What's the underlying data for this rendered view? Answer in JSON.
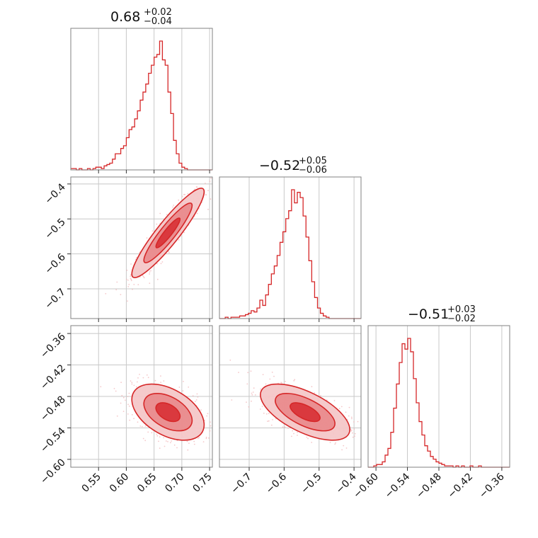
{
  "colors": {
    "accent": "#d62728",
    "point": "#f2b6b8",
    "fill_outer": "#f4c7c8",
    "fill_mid": "#e98b8d",
    "fill_inner": "#d9353a"
  },
  "chart_data": {
    "type": "corner",
    "grid": true,
    "parameters": [
      {
        "title": {
          "value": "0.68",
          "plus": "+0.02",
          "minus": "−0.04"
        },
        "range": [
          0.5,
          0.755
        ],
        "ticks": [
          0.55,
          0.6,
          0.65,
          0.7,
          0.75
        ],
        "tick_labels": [
          "0.55",
          "0.60",
          "0.65",
          "0.70",
          "0.75"
        ]
      },
      {
        "title": {
          "value": "−0.52",
          "plus": "+0.05",
          "minus": "−0.06"
        },
        "range": [
          -0.785,
          -0.38
        ],
        "ticks": [
          -0.7,
          -0.6,
          -0.5,
          -0.4
        ],
        "tick_labels": [
          "−0.7",
          "−0.6",
          "−0.5",
          "−0.4"
        ]
      },
      {
        "title": {
          "value": "−0.51",
          "plus": "+0.03",
          "minus": "−0.02"
        },
        "range": [
          -0.615,
          -0.345
        ],
        "ticks": [
          -0.6,
          -0.54,
          -0.48,
          -0.42,
          -0.36
        ],
        "tick_labels": [
          "−0.60",
          "−0.54",
          "−0.48",
          "−0.42",
          "−0.36"
        ]
      }
    ],
    "histograms": [
      {
        "param": 0,
        "bin_start": 0.5,
        "bin_width": 0.005,
        "counts": [
          1,
          1,
          0,
          1,
          0,
          0,
          1,
          0,
          1,
          2,
          2,
          1,
          3,
          4,
          5,
          8,
          12,
          12,
          16,
          18,
          24,
          30,
          32,
          38,
          44,
          52,
          58,
          64,
          72,
          78,
          84,
          86,
          96,
          82,
          78,
          58,
          42,
          22,
          12,
          5,
          2,
          1,
          0,
          0,
          0,
          0,
          0,
          0,
          0,
          0,
          0
        ]
      },
      {
        "param": 1,
        "bin_start": -0.785,
        "bin_width": 0.00825,
        "counts": [
          0,
          0,
          1,
          0,
          1,
          1,
          1,
          2,
          2,
          3,
          4,
          6,
          5,
          8,
          14,
          10,
          18,
          26,
          34,
          40,
          48,
          58,
          66,
          76,
          82,
          98,
          88,
          96,
          92,
          78,
          62,
          44,
          28,
          16,
          8,
          4,
          2,
          1,
          0,
          0,
          0,
          0,
          0,
          0,
          0,
          0,
          0,
          0,
          0
        ]
      },
      {
        "param": 2,
        "bin_start": -0.615,
        "bin_width": 0.0054,
        "counts": [
          0,
          0,
          1,
          2,
          2,
          4,
          9,
          14,
          26,
          44,
          62,
          78,
          92,
          88,
          96,
          86,
          66,
          48,
          34,
          24,
          16,
          12,
          8,
          6,
          4,
          3,
          2,
          1,
          1,
          1,
          0,
          1,
          0,
          1,
          0,
          0,
          1,
          0,
          0,
          1,
          0,
          0,
          0,
          0,
          0,
          0,
          0,
          0,
          0,
          0
        ]
      }
    ],
    "joint": [
      {
        "x_param": 0,
        "y_param": 1,
        "mean": [
          0.675,
          -0.54
        ],
        "std": [
          0.028,
          0.055
        ],
        "correlation": 0.92
      },
      {
        "x_param": 0,
        "y_param": 2,
        "mean": [
          0.675,
          -0.51
        ],
        "std": [
          0.028,
          0.023
        ],
        "correlation": -0.45
      },
      {
        "x_param": 1,
        "y_param": 2,
        "mean": [
          -0.54,
          -0.51
        ],
        "std": [
          0.055,
          0.023
        ],
        "correlation": -0.62
      }
    ],
    "contour_levels_sigma": [
      0.5,
      1.0,
      1.5
    ]
  }
}
